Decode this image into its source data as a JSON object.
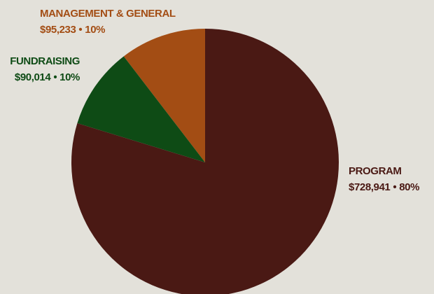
{
  "colors": {
    "background": "#e3e1da",
    "program": "#4a1914",
    "fundraising": "#0e4b15",
    "management": "#a34d14"
  },
  "chart_data": {
    "type": "pie",
    "title": "",
    "slices": [
      {
        "name": "MANAGEMENT & GENERAL",
        "amount": "$95,233",
        "percent_label": "10%",
        "value": 95233,
        "color": "#a34d14"
      },
      {
        "name": "FUNDRAISING",
        "amount": "$90,014",
        "percent_label": "10%",
        "value": 90014,
        "color": "#0e4b15"
      },
      {
        "name": "PROGRAM",
        "amount": "$728,941",
        "percent_label": "80%",
        "value": 728941,
        "color": "#4a1914"
      }
    ],
    "separator": "•",
    "start_angle_degrees": 0,
    "direction": "counterclockwise"
  }
}
